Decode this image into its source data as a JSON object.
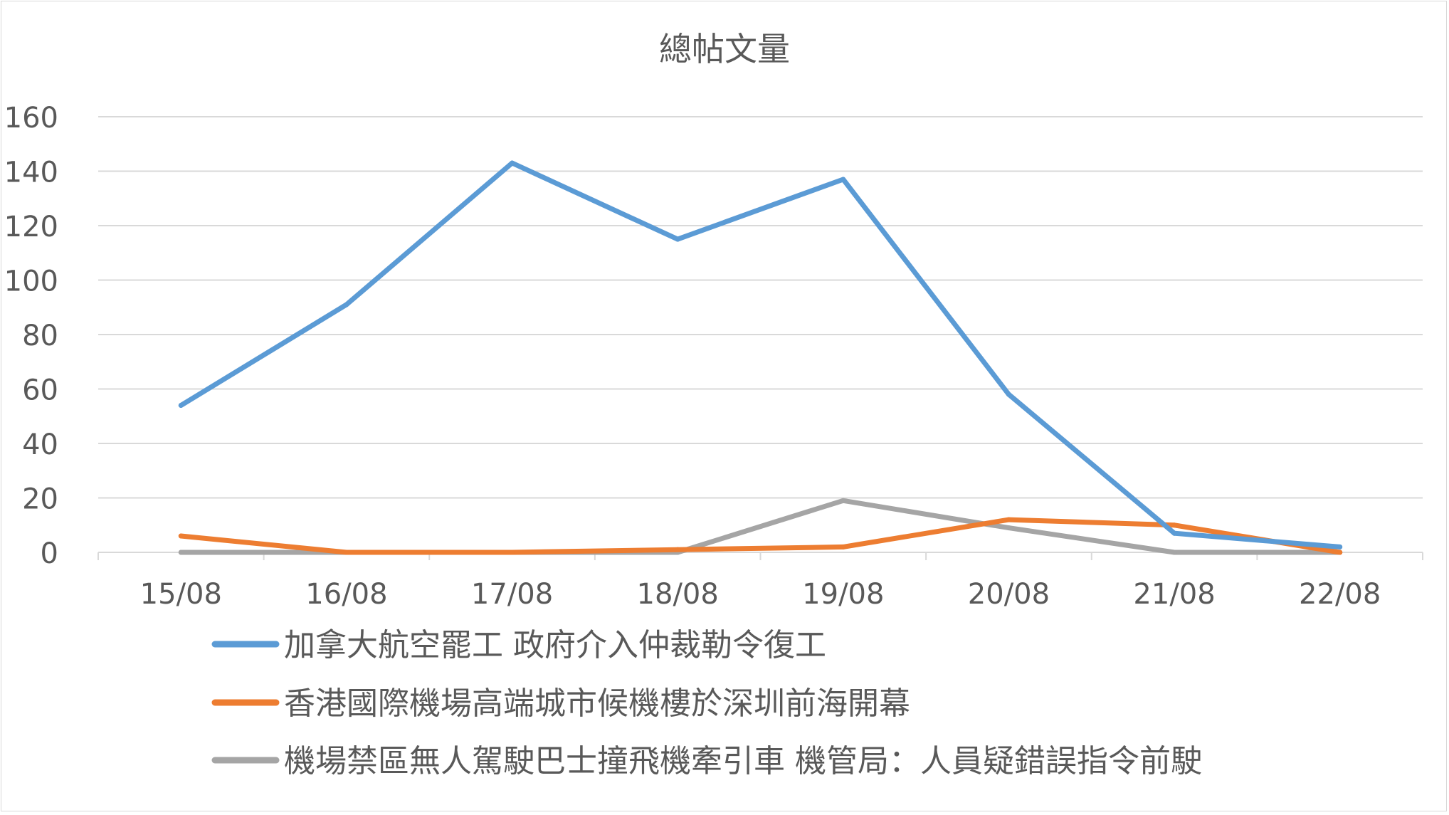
{
  "chart_data": {
    "type": "line",
    "title": "總帖文量",
    "xlabel": "",
    "ylabel": "",
    "categories": [
      "15/08",
      "16/08",
      "17/08",
      "18/08",
      "19/08",
      "20/08",
      "21/08",
      "22/08"
    ],
    "ylim": [
      0,
      160
    ],
    "yticks": [
      "0",
      "20",
      "40",
      "60",
      "80",
      "100",
      "120",
      "140",
      "160"
    ],
    "grid": true,
    "legend_position": "bottom",
    "series": [
      {
        "name": "加拿大航空罷工 政府介入仲裁勒令復工",
        "color": "#5b9bd5",
        "values": [
          54,
          91,
          143,
          115,
          137,
          58,
          7,
          2
        ]
      },
      {
        "name": "香港國際機場高端城市候機樓於深圳前海開幕",
        "color": "#ed7d31",
        "values": [
          6,
          0,
          0,
          1,
          2,
          12,
          10,
          0
        ]
      },
      {
        "name": "機場禁區無人駕駛巴士撞飛機牽引車 機管局：人員疑錯誤指令前駛",
        "color": "#a5a5a5",
        "values": [
          0,
          0,
          0,
          0,
          19,
          9,
          0,
          0
        ]
      }
    ]
  }
}
